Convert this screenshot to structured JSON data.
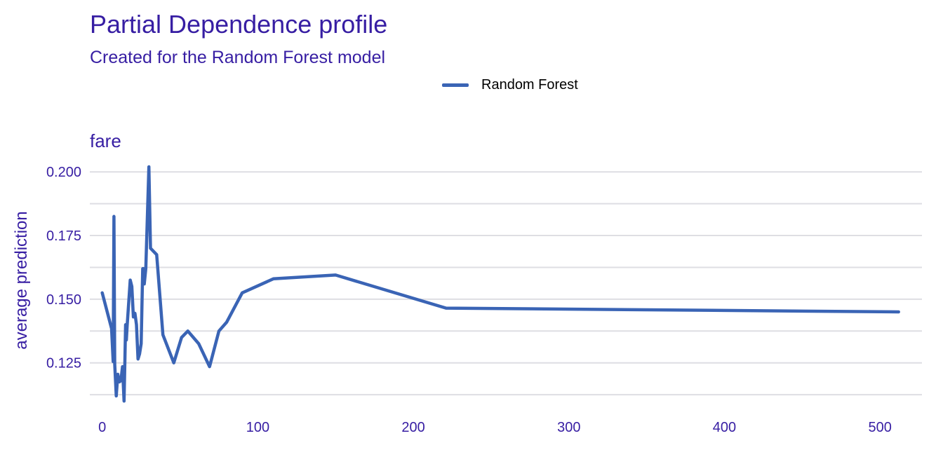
{
  "chart_data": {
    "type": "line",
    "title": "Partial Dependence profile",
    "subtitle": "Created for the Random Forest model",
    "panel_label": "fare",
    "xlabel": "",
    "ylabel": "average prediction",
    "xlim": [
      -8,
      527
    ],
    "ylim": [
      0.1095,
      0.2075
    ],
    "x_ticks": [
      0,
      100,
      200,
      300,
      400,
      500
    ],
    "x_tick_labels": [
      "0",
      "100",
      "200",
      "300",
      "400",
      "500"
    ],
    "y_ticks": [
      0.125,
      0.15,
      0.175,
      0.2
    ],
    "y_tick_labels": [
      "0.125",
      "0.150",
      "0.175",
      "0.200"
    ],
    "y_minor_gridlines": [
      0.1125,
      0.1375,
      0.1625,
      0.1875
    ],
    "grid": true,
    "legend_position": "top",
    "series": [
      {
        "name": "Random Forest",
        "color": "#3a64b5",
        "x": [
          0,
          6,
          7,
          7.5,
          8,
          9,
          10,
          11,
          12,
          13,
          14,
          14.5,
          15,
          15.5,
          16,
          18,
          19,
          20,
          21,
          22,
          23,
          24,
          25,
          26,
          26.5,
          27,
          28,
          30,
          31,
          35,
          39,
          46,
          51,
          55,
          62,
          69,
          75,
          80,
          90,
          110,
          150,
          221,
          512
        ],
        "y": [
          0.1525,
          0.1385,
          0.1255,
          0.1825,
          0.1245,
          0.112,
          0.1205,
          0.1175,
          0.118,
          0.1235,
          0.11,
          0.1245,
          0.14,
          0.134,
          0.1395,
          0.1575,
          0.155,
          0.143,
          0.1445,
          0.14,
          0.1265,
          0.1285,
          0.1325,
          0.162,
          0.162,
          0.156,
          0.162,
          0.202,
          0.17,
          0.1675,
          0.136,
          0.125,
          0.135,
          0.1375,
          0.1325,
          0.1235,
          0.1375,
          0.141,
          0.1525,
          0.158,
          0.1595,
          0.1465,
          0.145
        ]
      }
    ]
  }
}
